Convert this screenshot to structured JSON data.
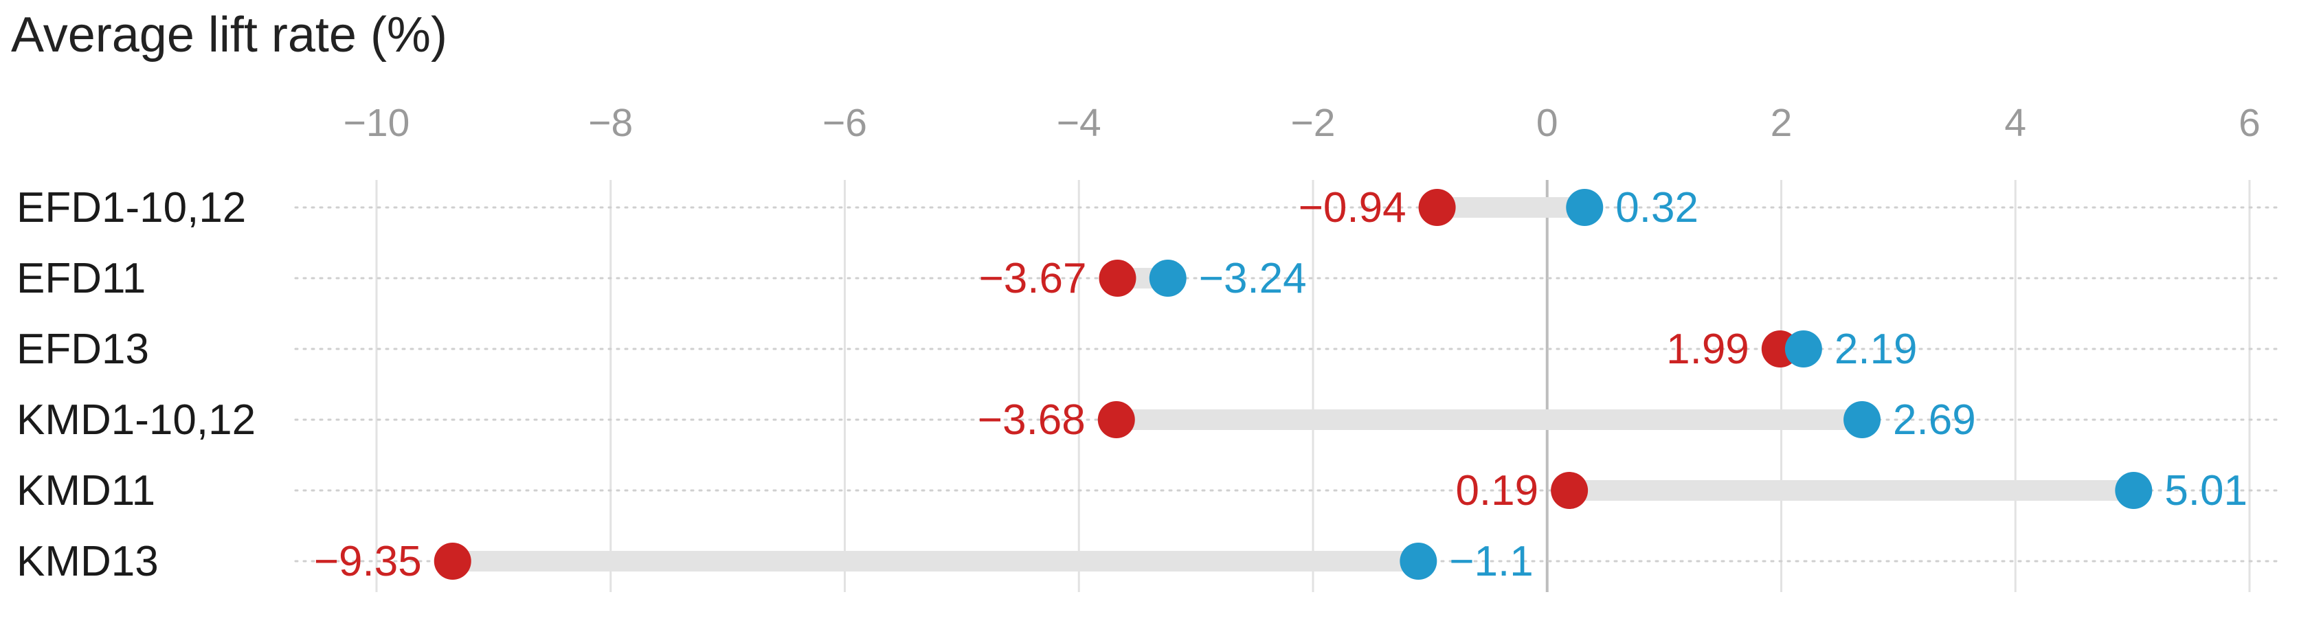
{
  "chart_data": {
    "type": "dumbbell",
    "title": "Average lift rate (%)",
    "xlim": [
      -10,
      6
    ],
    "xticks": [
      -10,
      -8,
      -6,
      -4,
      -2,
      0,
      2,
      4,
      6
    ],
    "xtick_labels": [
      "−10",
      "−8",
      "−6",
      "−4",
      "−2",
      "0",
      "2",
      "4",
      "6"
    ],
    "grid": true,
    "categories": [
      "EFD1-10,12",
      "EFD11",
      "EFD13",
      "KMD1-10,12",
      "KMD11",
      "KMD13"
    ],
    "series": [
      {
        "color": "#cc2222",
        "values": [
          -0.94,
          -3.67,
          1.99,
          -3.68,
          0.19,
          -9.35
        ],
        "labels": [
          "−0.94",
          "−3.67",
          "1.99",
          "−3.68",
          "0.19",
          "−9.35"
        ]
      },
      {
        "color": "#2299cc",
        "values": [
          0.32,
          -3.24,
          2.19,
          2.69,
          5.01,
          -1.1
        ],
        "labels": [
          "0.32",
          "−3.24",
          "2.19",
          "2.69",
          "5.01",
          "−1.1"
        ]
      }
    ]
  }
}
